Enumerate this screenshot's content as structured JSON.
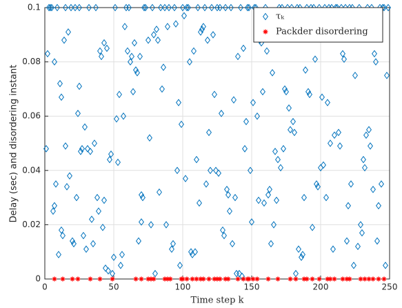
{
  "chart_data": {
    "type": "scatter",
    "xlabel": "Time step k",
    "ylabel": "Delay (sec) and disordering instant",
    "xlim": [
      0,
      250
    ],
    "xticks": [
      0,
      50,
      100,
      150,
      200,
      250
    ],
    "ylim": [
      0,
      0.1
    ],
    "yticks": [
      0,
      0.02,
      0.04,
      0.06,
      0.08,
      0.1
    ],
    "grid": true,
    "legend": "upper right",
    "series": [
      {
        "name": "τₖ",
        "color": "#0072bd",
        "marker": "diamond",
        "x": [
          1,
          2,
          3,
          4,
          5,
          6,
          7,
          7,
          8,
          9,
          10,
          11,
          12,
          12,
          13,
          14,
          15,
          15,
          16,
          17,
          18,
          19,
          20,
          21,
          22,
          23,
          24,
          25,
          25,
          26,
          27,
          28,
          29,
          30,
          31,
          32,
          33,
          34,
          35,
          36,
          37,
          38,
          39,
          40,
          41,
          42,
          43,
          43,
          44,
          45,
          46,
          47,
          48,
          49,
          50,
          51,
          52,
          53,
          54,
          55,
          56,
          57,
          58,
          59,
          60,
          61,
          62,
          63,
          64,
          65,
          66,
          67,
          68,
          69,
          70,
          70,
          71,
          72,
          73,
          75,
          76,
          77,
          78,
          79,
          80,
          81,
          82,
          83,
          84,
          85,
          86,
          87,
          88,
          89,
          90,
          92,
          93,
          94,
          95,
          96,
          97,
          98,
          99,
          100,
          101,
          102,
          103,
          104,
          105,
          106,
          107,
          108,
          109,
          110,
          111,
          112,
          113,
          114,
          115,
          116,
          117,
          118,
          119,
          120,
          121,
          122,
          123,
          124,
          125,
          126,
          127,
          128,
          129,
          130,
          131,
          132,
          133,
          134,
          135,
          136,
          137,
          138,
          139,
          140,
          141,
          142,
          143,
          144,
          145,
          146,
          147,
          148,
          149,
          150,
          151,
          152,
          153,
          154,
          155,
          156,
          157,
          158,
          159,
          160,
          161,
          162,
          163,
          164,
          165,
          166,
          167,
          168,
          169,
          170,
          171,
          172,
          173,
          174,
          175,
          176,
          177,
          178,
          179,
          180,
          181,
          182,
          183,
          184,
          185,
          186,
          187,
          188,
          189,
          190,
          191,
          192,
          193,
          194,
          195,
          196,
          197,
          198,
          199,
          200,
          201,
          202,
          203,
          204,
          205,
          206,
          207,
          208,
          209,
          210,
          211,
          212,
          213,
          214,
          215,
          216,
          217,
          218,
          219,
          220,
          221,
          222,
          223,
          224,
          225,
          227,
          228,
          229,
          230,
          231,
          232,
          233,
          234,
          235,
          236,
          237,
          238,
          239,
          240,
          241,
          242,
          243,
          244,
          245,
          246,
          247,
          248,
          249
        ],
        "values": [
          0.048,
          0.083,
          0.1,
          0.1,
          0.1,
          0.025,
          0.08,
          0.027,
          0.035,
          0.1,
          0.009,
          0.072,
          0.067,
          0.018,
          0.016,
          0.088,
          0.049,
          0.1,
          0.034,
          0.091,
          0.038,
          0.1,
          0.014,
          0.013,
          0.1,
          0.03,
          0.061,
          0.071,
          0.1,
          0.047,
          0.048,
          0.016,
          0.056,
          0.011,
          0.048,
          0.1,
          0.047,
          0.022,
          0.013,
          0.05,
          0.1,
          0.03,
          0.025,
          0.084,
          0.082,
          0.019,
          0.087,
          0.029,
          0.004,
          0.085,
          0.003,
          0.044,
          0.046,
          0.002,
          0.008,
          0.1,
          0.059,
          0.043,
          0.068,
          0.005,
          0.009,
          0.06,
          0.093,
          0.1,
          0.084,
          0.1,
          0.08,
          0.082,
          0.069,
          0.087,
          0.077,
          0.076,
          0.014,
          0.082,
          0.031,
          0.021,
          0.03,
          0.1,
          0.1,
          0.088,
          0.052,
          0.02,
          0.1,
          0.09,
          0.002,
          0.092,
          0.088,
          0.032,
          0.1,
          0.07,
          0.078,
          0.1,
          0.02,
          0.093,
          0.1,
          0.011,
          0.013,
          0.1,
          0.094,
          0.04,
          0.065,
          0.005,
          0.057,
          0.1,
          0.097,
          0.037,
          0.1,
          0.1,
          0.08,
          0.01,
          0.009,
          0.084,
          0.01,
          0.044,
          0.1,
          0.028,
          0.091,
          0.092,
          0.093,
          0.1,
          0.035,
          0.088,
          0.054,
          0.04,
          0.1,
          0.09,
          0.068,
          0.04,
          0.1,
          0.039,
          0.1,
          0.061,
          0.018,
          0.016,
          0.1,
          0.033,
          0.031,
          0.025,
          0.1,
          0.013,
          0.066,
          0.03,
          0.002,
          0.082,
          0.002,
          0.1,
          0.001,
          0.085,
          0.048,
          0.058,
          0.1,
          0.1,
          0.04,
          0.021,
          0.065,
          0.1,
          0.1,
          0.06,
          0.029,
          0.088,
          0.087,
          0.069,
          0.028,
          0.1,
          0.084,
          0.031,
          0.033,
          0.013,
          0.076,
          0.02,
          0.047,
          0.029,
          0.044,
          0.1,
          0.041,
          0.1,
          0.048,
          0.07,
          0.069,
          0.1,
          0.063,
          0.055,
          0.1,
          0.058,
          0.054,
          0.002,
          0.1,
          0.011,
          0.1,
          0.008,
          0.009,
          0.03,
          0.077,
          0.1,
          0.069,
          0.068,
          0.1,
          0.019,
          0.1,
          0.081,
          0.035,
          0.034,
          0.1,
          0.041,
          0.067,
          0.042,
          0.1,
          0.03,
          0.065,
          0.1,
          0.05,
          0.1,
          0.011,
          0.053,
          0.1,
          0.1,
          0.054,
          0.049,
          0.1,
          0.083,
          0.081,
          0.1,
          0.014,
          0.027,
          0.1,
          0.035,
          0.1,
          0.005,
          0.075,
          0.012,
          0.1,
          0.02,
          0.017,
          0.044,
          0.041,
          0.053,
          0.1,
          0.055,
          0.049,
          0.1,
          0.033,
          0.083,
          0.08,
          0.014,
          0.027,
          0.1,
          0.035,
          0.1,
          0.1,
          0.005,
          0.075,
          0.1
        ]
      },
      {
        "name": "Packder disordering",
        "color": "#ff0000",
        "marker": "star",
        "x": [
          7,
          13,
          20,
          24,
          33,
          40,
          49,
          66,
          70,
          75,
          77,
          79,
          87,
          89,
          91,
          99,
          100,
          103,
          107,
          110,
          113,
          115,
          119,
          123,
          125,
          127,
          131,
          133,
          140,
          144,
          147,
          148,
          151,
          154,
          162,
          169,
          178,
          182,
          188,
          190,
          194,
          199,
          205,
          207,
          210,
          216,
          219,
          221,
          229,
          232,
          235,
          238,
          242,
          246
        ],
        "values": [
          0,
          0,
          0,
          0,
          0,
          0,
          0,
          0,
          0,
          0,
          0,
          0,
          0,
          0,
          0,
          0,
          0,
          0,
          0,
          0,
          0,
          0,
          0,
          0,
          0,
          0,
          0,
          0,
          0,
          0,
          0,
          0,
          0,
          0,
          0,
          0,
          0,
          0,
          0,
          0,
          0,
          0,
          0,
          0,
          0,
          0,
          0,
          0,
          0,
          0,
          0,
          0,
          0,
          0
        ]
      }
    ]
  }
}
